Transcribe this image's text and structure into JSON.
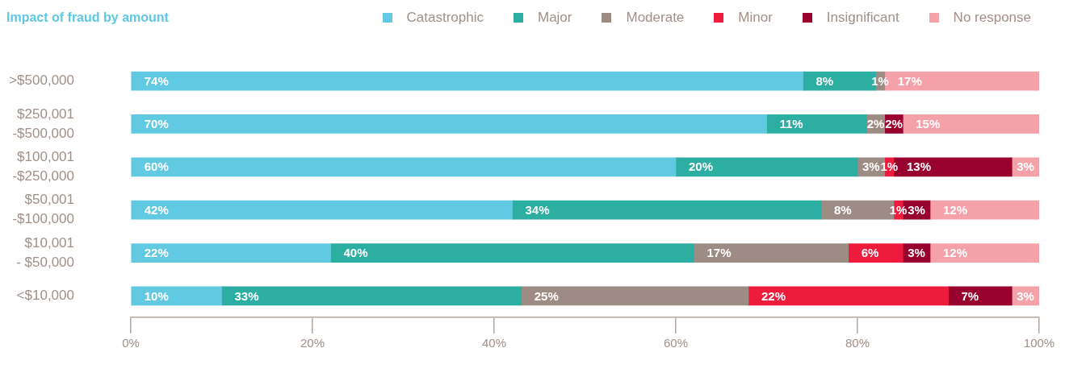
{
  "chart_data": {
    "type": "bar",
    "orientation": "horizontal",
    "stacked": true,
    "title": "Impact of fraud by amount",
    "legend": "top right",
    "categories": [
      ">$500,000",
      "$250,001\n-$500,000",
      "$100,001\n-$250,000",
      "$50,001\n-$100,000",
      "$10,001\n- $50,000",
      "<$10,000"
    ],
    "series": [
      {
        "name": "Catastrophic",
        "color": "#62c9e2",
        "values": [
          74,
          70,
          60,
          42,
          22,
          10
        ],
        "value_labels": [
          "74%",
          "70%",
          "60%",
          "42%",
          "22%",
          "10%"
        ]
      },
      {
        "name": "Major",
        "color": "#2daea2",
        "values": [
          8,
          11,
          20,
          34,
          40,
          33
        ],
        "value_labels": [
          "8%",
          "11%",
          "20%",
          "34%",
          "40%",
          "33%"
        ]
      },
      {
        "name": "Moderate",
        "color": "#9d8c84",
        "values": [
          1,
          2,
          3,
          8,
          17,
          25
        ],
        "value_labels": [
          "1%",
          "2%",
          "3%",
          "8%",
          "17%",
          "25%"
        ]
      },
      {
        "name": "Minor",
        "color": "#ee1b3d",
        "values": [
          null,
          null,
          1,
          1,
          6,
          22
        ],
        "value_labels": [
          null,
          null,
          "1%",
          "1%",
          "6%",
          "22%"
        ]
      },
      {
        "name": "Insignificant",
        "color": "#98002e",
        "values": [
          null,
          2,
          13,
          3,
          3,
          7
        ],
        "value_labels": [
          null,
          "2%",
          "13%",
          "3%",
          "3%",
          "7%"
        ]
      },
      {
        "name": "No response",
        "color": "#f4a1a7",
        "values": [
          17,
          15,
          3,
          12,
          12,
          3
        ],
        "value_labels": [
          "17%",
          "15%",
          "3%",
          "12%",
          "12%",
          "3%"
        ]
      }
    ],
    "xlim": [
      0,
      100
    ],
    "xticks": [
      {
        "value": 0,
        "label": "0%"
      },
      {
        "value": 20,
        "label": "20%"
      },
      {
        "value": 40,
        "label": "40%"
      },
      {
        "value": 60,
        "label": "60%"
      },
      {
        "value": 80,
        "label": "80%"
      },
      {
        "value": 100,
        "label": "100%"
      }
    ]
  }
}
